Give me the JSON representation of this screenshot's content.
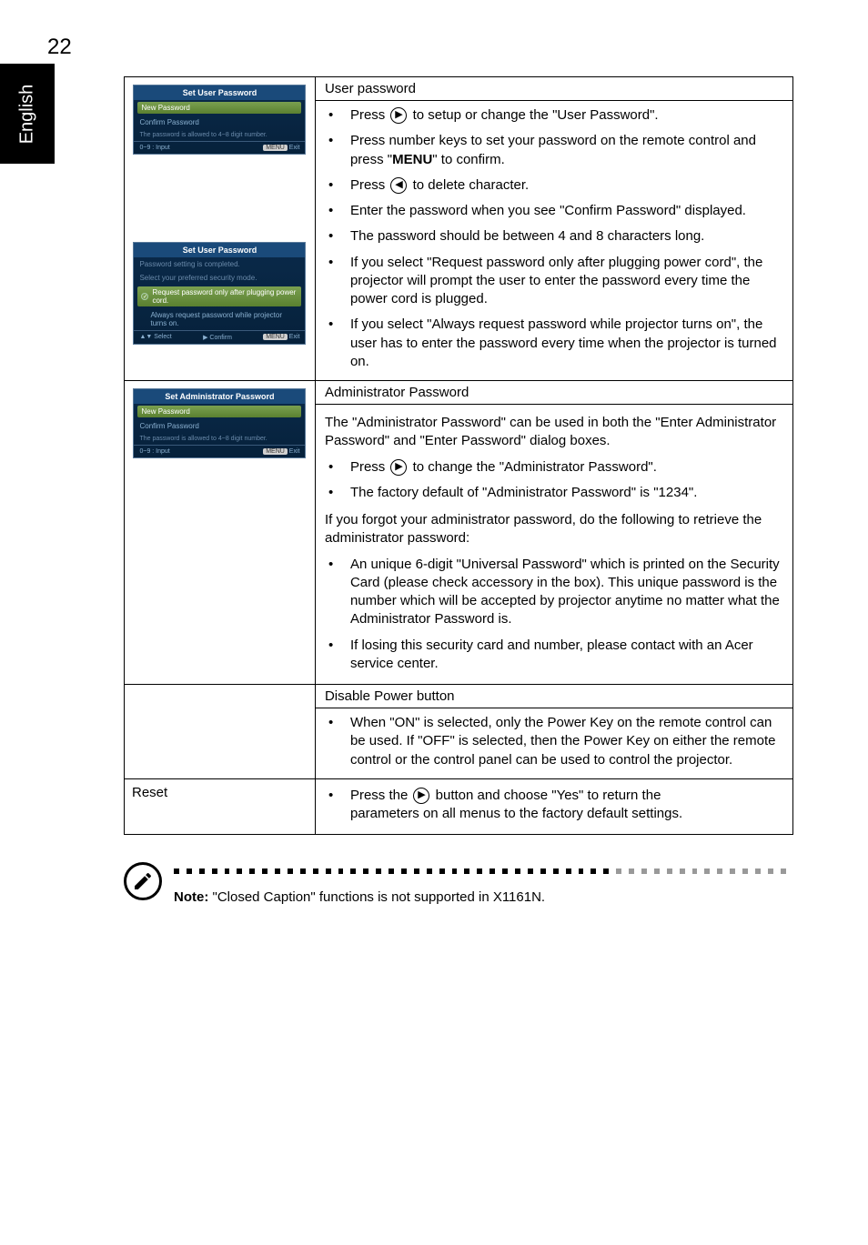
{
  "page_number": "22",
  "language_tab": "English",
  "osd": {
    "user_pw_title": "Set User Password",
    "admin_pw_title": "Set Administrator Password",
    "new_password": "New Password",
    "confirm_password": "Confirm Password",
    "allowed_note": "The password is allowed to 4~8 digit number.",
    "input_hint": "0~9 : Input",
    "exit_hint": "Exit",
    "menu_label": "MENU",
    "pw_complete": "Password setting is completed.",
    "select_mode": "Select your preferred security mode.",
    "opt_plug": "Request password only after plugging power cord.",
    "opt_always": "Always request password while projector turns on.",
    "select_hint": "Select",
    "confirm_hint": "Confirm"
  },
  "sections": {
    "user_password": {
      "header": "User password",
      "bullets": [
        {
          "pre": "Press ",
          "icon": "▶",
          "post": " to setup or change the \"User Password\"."
        },
        {
          "text": "Press number keys to set your password on the remote control and press \"",
          "bold": "MENU",
          "text2": "\" to confirm."
        },
        {
          "pre": "Press ",
          "icon": "◀",
          "post": " to delete character."
        },
        {
          "text": "Enter the password when you see \"Confirm Password\" displayed."
        },
        {
          "text": "The password should be between 4 and 8 characters long."
        },
        {
          "text": "If you select \"Request password only after plugging power cord\", the projector will prompt the user to enter the password every time the power cord is plugged."
        },
        {
          "text": "If you select \"Always request password while projector turns on\", the user has to enter the password every time when the projector is turned on."
        }
      ]
    },
    "admin_password": {
      "header": "Administrator Password",
      "intro": "The \"Administrator Password\" can be used in both the \"Enter Administrator Password\" and \"Enter Password\" dialog boxes.",
      "b1_pre": "Press ",
      "b1_icon": "▶",
      "b1_post": " to change the \"Administrator Password\".",
      "b2": "The factory default of \"Administrator Password\" is \"1234\".",
      "forgot": "If you forgot your administrator password, do the following to retrieve the administrator password:",
      "b3": "An unique 6-digit \"Universal Password\" which is printed on the Security Card (please check accessory in the box). This unique password is the number which will be accepted by projector anytime no matter what the Administrator Password is.",
      "b4": "If losing this security card and number, please contact with an Acer service center."
    },
    "disable_power": {
      "header": "Disable Power button",
      "b1": "When \"ON\" is selected, only the Power Key on the remote control can be used. If \"OFF\" is selected, then the Power Key on either the remote control or the control panel can be used to control the projector."
    },
    "reset": {
      "label": "Reset",
      "pre": "Press the ",
      "icon": "▶",
      "mid": " button and choose \"Yes\" to return the",
      "line2": "parameters on all menus to the factory default settings."
    }
  },
  "note": {
    "bold": "Note:",
    "text": " \"Closed Caption\" functions is not supported in X1161N."
  }
}
